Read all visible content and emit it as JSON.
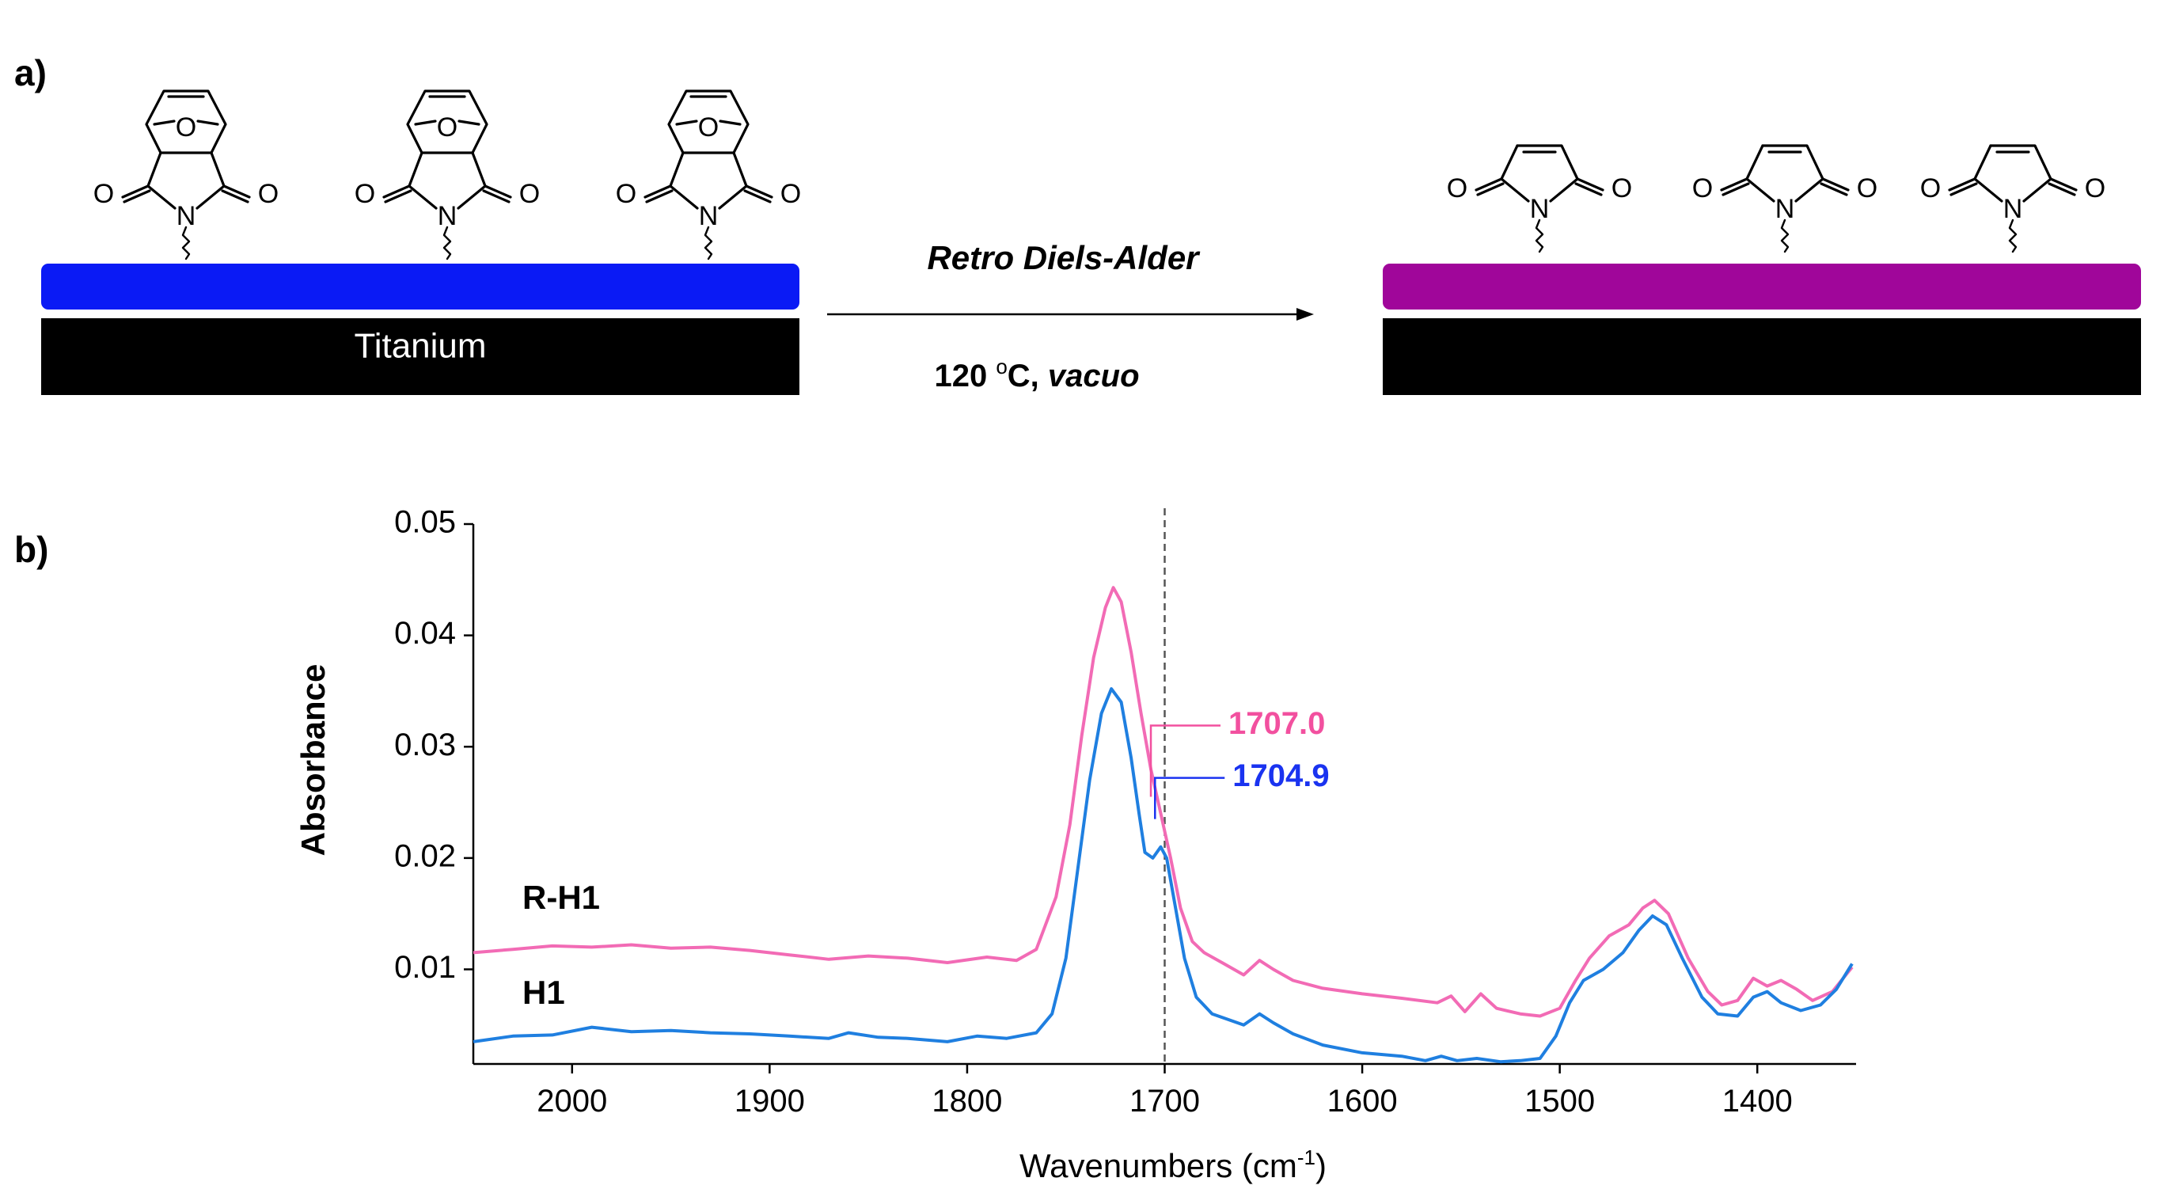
{
  "panel_a": {
    "label": "a)",
    "substrate_label": "Titanium",
    "reaction_name": "Retro Diels-Alder",
    "conditions_temp": "120 ",
    "conditions_deg": "o",
    "conditions_unit": "C, ",
    "conditions_env": "vacuo",
    "atoms": {
      "oxygen": "O",
      "nitrogen": "N"
    },
    "colors": {
      "left_layer": "#0a1af5",
      "right_layer": "#a0069a",
      "substrate": "#000000"
    }
  },
  "panel_b": {
    "label": "b)",
    "peak_annotations": [
      {
        "label": "1707.0",
        "color": "#f2509f"
      },
      {
        "label": "1704.9",
        "color": "#1a33f0"
      }
    ],
    "series_labels": [
      "R-H1",
      "H1"
    ]
  },
  "chart_data": {
    "type": "line",
    "title": "",
    "xlabel": "Wavenumbers (cm",
    "xlabel_sup": "-1",
    "xlabel_tail": ")",
    "ylabel": "Absorbance",
    "xlim": [
      2050,
      1350
    ],
    "ylim": [
      0.0015,
      0.05
    ],
    "x_reversed": true,
    "x_ticks": [
      2000,
      1900,
      1800,
      1700,
      1600,
      1500,
      1400
    ],
    "y_ticks": [
      0.01,
      0.02,
      0.03,
      0.04,
      0.05
    ],
    "y_tick_labels": [
      "0.01",
      "0.02",
      "0.03",
      "0.04",
      "0.05"
    ],
    "reference_line_x": 1700,
    "grid": false,
    "series": [
      {
        "name": "R-H1",
        "color": "#f26bb5",
        "points": [
          [
            2050,
            0.0115
          ],
          [
            2030,
            0.0118
          ],
          [
            2010,
            0.0121
          ],
          [
            1990,
            0.012
          ],
          [
            1970,
            0.0122
          ],
          [
            1950,
            0.0119
          ],
          [
            1930,
            0.012
          ],
          [
            1910,
            0.0117
          ],
          [
            1890,
            0.0113
          ],
          [
            1870,
            0.0109
          ],
          [
            1850,
            0.0112
          ],
          [
            1830,
            0.011
          ],
          [
            1810,
            0.0106
          ],
          [
            1790,
            0.0111
          ],
          [
            1775,
            0.0108
          ],
          [
            1765,
            0.0118
          ],
          [
            1755,
            0.0165
          ],
          [
            1748,
            0.023
          ],
          [
            1742,
            0.031
          ],
          [
            1736,
            0.038
          ],
          [
            1730,
            0.0425
          ],
          [
            1726,
            0.0443
          ],
          [
            1722,
            0.043
          ],
          [
            1717,
            0.0385
          ],
          [
            1712,
            0.033
          ],
          [
            1707,
            0.028
          ],
          [
            1702,
            0.024
          ],
          [
            1697,
            0.02
          ],
          [
            1692,
            0.0155
          ],
          [
            1686,
            0.0125
          ],
          [
            1680,
            0.0115
          ],
          [
            1670,
            0.0105
          ],
          [
            1660,
            0.0095
          ],
          [
            1652,
            0.0108
          ],
          [
            1645,
            0.01
          ],
          [
            1635,
            0.009
          ],
          [
            1620,
            0.0083
          ],
          [
            1600,
            0.0078
          ],
          [
            1580,
            0.0074
          ],
          [
            1562,
            0.007
          ],
          [
            1555,
            0.0076
          ],
          [
            1548,
            0.0062
          ],
          [
            1540,
            0.0078
          ],
          [
            1532,
            0.0065
          ],
          [
            1520,
            0.006
          ],
          [
            1510,
            0.0058
          ],
          [
            1500,
            0.0065
          ],
          [
            1492,
            0.009
          ],
          [
            1485,
            0.011
          ],
          [
            1475,
            0.013
          ],
          [
            1465,
            0.014
          ],
          [
            1458,
            0.0155
          ],
          [
            1452,
            0.0162
          ],
          [
            1445,
            0.015
          ],
          [
            1435,
            0.011
          ],
          [
            1425,
            0.008
          ],
          [
            1418,
            0.0068
          ],
          [
            1410,
            0.0072
          ],
          [
            1402,
            0.0092
          ],
          [
            1395,
            0.0085
          ],
          [
            1388,
            0.009
          ],
          [
            1380,
            0.0082
          ],
          [
            1372,
            0.0072
          ],
          [
            1362,
            0.008
          ],
          [
            1352,
            0.0102
          ]
        ]
      },
      {
        "name": "H1",
        "color": "#1f7fe0",
        "points": [
          [
            2050,
            0.0035
          ],
          [
            2030,
            0.004
          ],
          [
            2010,
            0.0041
          ],
          [
            1990,
            0.0048
          ],
          [
            1970,
            0.0044
          ],
          [
            1950,
            0.0045
          ],
          [
            1930,
            0.0043
          ],
          [
            1910,
            0.0042
          ],
          [
            1890,
            0.004
          ],
          [
            1870,
            0.0038
          ],
          [
            1860,
            0.0043
          ],
          [
            1845,
            0.0039
          ],
          [
            1830,
            0.0038
          ],
          [
            1810,
            0.0035
          ],
          [
            1795,
            0.004
          ],
          [
            1780,
            0.0038
          ],
          [
            1765,
            0.0043
          ],
          [
            1757,
            0.006
          ],
          [
            1750,
            0.011
          ],
          [
            1744,
            0.019
          ],
          [
            1738,
            0.027
          ],
          [
            1732,
            0.033
          ],
          [
            1727,
            0.0352
          ],
          [
            1722,
            0.034
          ],
          [
            1717,
            0.029
          ],
          [
            1713,
            0.024
          ],
          [
            1710,
            0.0205
          ],
          [
            1706,
            0.02
          ],
          [
            1702,
            0.021
          ],
          [
            1699,
            0.02
          ],
          [
            1695,
            0.016
          ],
          [
            1690,
            0.011
          ],
          [
            1684,
            0.0075
          ],
          [
            1676,
            0.006
          ],
          [
            1668,
            0.0055
          ],
          [
            1660,
            0.005
          ],
          [
            1652,
            0.006
          ],
          [
            1645,
            0.0052
          ],
          [
            1635,
            0.0042
          ],
          [
            1620,
            0.0032
          ],
          [
            1600,
            0.0025
          ],
          [
            1580,
            0.0022
          ],
          [
            1568,
            0.0018
          ],
          [
            1560,
            0.0022
          ],
          [
            1552,
            0.0018
          ],
          [
            1542,
            0.002
          ],
          [
            1530,
            0.0017
          ],
          [
            1520,
            0.0018
          ],
          [
            1510,
            0.002
          ],
          [
            1502,
            0.004
          ],
          [
            1495,
            0.007
          ],
          [
            1488,
            0.009
          ],
          [
            1478,
            0.01
          ],
          [
            1468,
            0.0115
          ],
          [
            1460,
            0.0135
          ],
          [
            1453,
            0.0148
          ],
          [
            1446,
            0.014
          ],
          [
            1438,
            0.011
          ],
          [
            1428,
            0.0075
          ],
          [
            1420,
            0.006
          ],
          [
            1410,
            0.0058
          ],
          [
            1402,
            0.0075
          ],
          [
            1395,
            0.008
          ],
          [
            1388,
            0.007
          ],
          [
            1378,
            0.0063
          ],
          [
            1368,
            0.0068
          ],
          [
            1360,
            0.0082
          ],
          [
            1352,
            0.0105
          ]
        ]
      }
    ]
  }
}
